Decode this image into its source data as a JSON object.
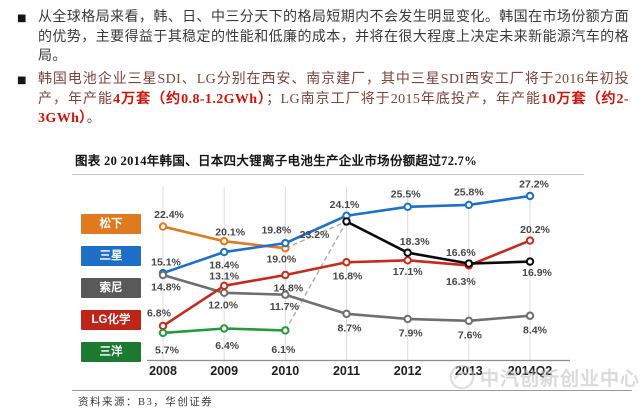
{
  "bullets": {
    "first": {
      "marker": "■",
      "text": "从全球格局来看，韩、日、中三分天下的格局短期内不会发生明显变化。韩国在市场份额方面的优势，主要得益于其稳定的性能和低廉的成本，并将在很大程度上决定未来新能源汽车的格局。"
    },
    "second": {
      "marker": "■",
      "s1": "韩国电池企业三星SDI、LG分别在西安、南京建厂，其中三星SDI西安工厂将于2016年初投产，年产能",
      "s2": "4万套（约0.8-1.2GWh）",
      "s3": "；LG南京工厂将于2015年底投产，年产能",
      "s4": "10万套（约2-3GWh）",
      "s5": "。"
    }
  },
  "figure": {
    "source": "资料来源：B3，华创证券",
    "watermark": "中汽创新创业中心"
  },
  "chart_data": {
    "type": "line",
    "title": "图表 20  2014年韩国、日本四大锂离子电池生产企业市场份额超过72.7%",
    "xlabel": "",
    "ylabel": "",
    "unit": "%",
    "label_format": "{value}%",
    "legend_position": "left",
    "grid": "vertical category gridlines",
    "ylim_implied": [
      1.5,
      28.5
    ],
    "categories": [
      "2008",
      "2009",
      "2010",
      "2011",
      "2012",
      "2013",
      "2014Q2"
    ],
    "series": [
      {
        "id": "panasonic",
        "legend": "松下",
        "color": "#DF7A1E",
        "legend_color": "#DF7A1E",
        "values": [
          22.4,
          20.1,
          19.0,
          null,
          null,
          null,
          null
        ]
      },
      {
        "id": "samsung",
        "legend": "三星",
        "color": "#1E6FC8",
        "legend_color": "#1E6FC8",
        "values": [
          15.1,
          18.4,
          19.8,
          24.1,
          25.5,
          25.8,
          27.2
        ]
      },
      {
        "id": "sony",
        "legend": "索尼",
        "color": "#6F6F6F",
        "legend_color": "#595959",
        "values": [
          14.8,
          12.0,
          11.7,
          8.7,
          7.9,
          7.6,
          8.4
        ]
      },
      {
        "id": "lg-chem",
        "legend": "LG化学",
        "color": "#C52A1C",
        "legend_color": "#BE2418",
        "values": [
          6.8,
          13.1,
          14.8,
          16.8,
          17.1,
          16.3,
          20.2
        ]
      },
      {
        "id": "sanyo",
        "legend": "三洋",
        "color": "#229A3C",
        "legend_color": "#1C7A31",
        "values": [
          5.7,
          6.4,
          6.1,
          null,
          null,
          null,
          null
        ]
      },
      {
        "id": "panasonic-sanyo-merged",
        "legend": null,
        "color": "#0B0B0B",
        "legend_color": "#0B0B0B",
        "values": [
          null,
          null,
          null,
          23.2,
          18.3,
          16.6,
          16.9
        ]
      }
    ],
    "connectors_dashed": [
      {
        "from": {
          "category": "2010",
          "value": 19.0
        },
        "to": {
          "category": "2011",
          "value": 23.2
        }
      },
      {
        "from": {
          "category": "2010",
          "value": 6.1
        },
        "to": {
          "category": "2011",
          "value": 23.2
        }
      }
    ]
  }
}
